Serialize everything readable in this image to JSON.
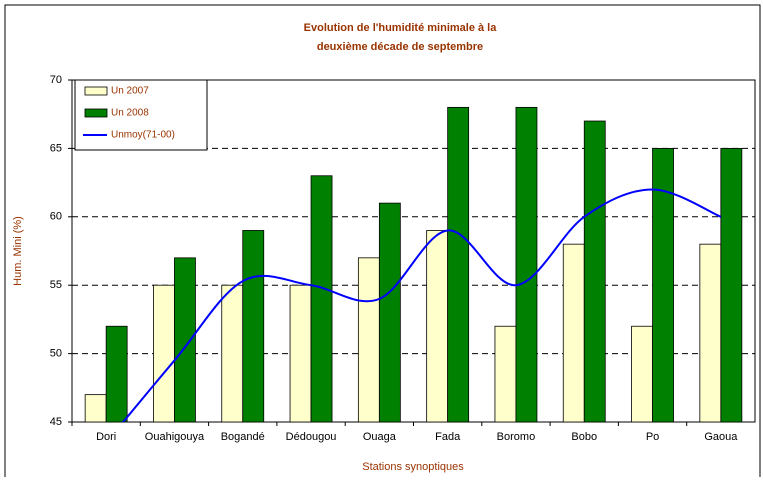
{
  "chart_data": {
    "type": "bar",
    "title": "Evolution de l'humidité minimale à la",
    "subtitle": "deuxième décade de septembre",
    "y_label": "Hum. Mini (%)",
    "x_label": "Stations synoptiques",
    "categories": [
      "Dori",
      "Ouahigouya",
      "Bogandé",
      "Dédougou",
      "Ouaga",
      "Fada",
      "Boromo",
      "Bobo",
      "Po",
      "Gaoua"
    ],
    "series": [
      {
        "name": "Un 2007",
        "type": "bar",
        "color": "#ffffcc",
        "values": [
          47,
          55,
          55,
          55,
          57,
          59,
          52,
          58,
          52,
          58
        ]
      },
      {
        "name": "Un 2008",
        "type": "bar",
        "color": "#008000",
        "values": [
          52,
          57,
          59,
          63,
          61,
          68,
          68,
          67,
          65,
          65
        ]
      },
      {
        "name": "Unmoy(71-00)",
        "type": "line",
        "color": "#0000ff",
        "values": [
          43.5,
          49.5,
          55.3,
          55,
          54,
          59,
          55,
          60,
          62,
          60
        ]
      }
    ],
    "ylim": [
      45,
      70
    ],
    "yticks": [
      45,
      50,
      55,
      60,
      65,
      70
    ],
    "grid": true,
    "legend": "upper left"
  }
}
